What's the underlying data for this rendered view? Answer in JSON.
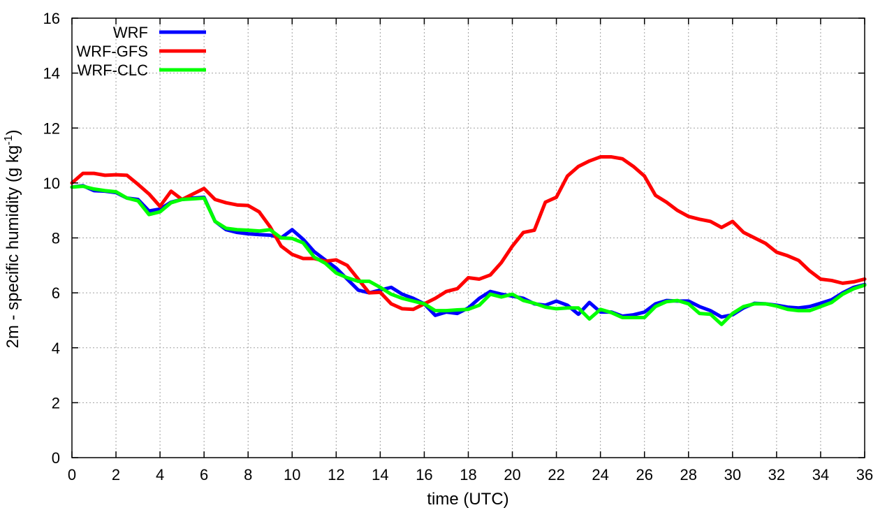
{
  "chart_data": {
    "type": "line",
    "title": "",
    "xlabel": "time (UTC)",
    "ylabel_main": "2m - specific humidity (g kg",
    "ylabel_sup": "-1",
    "ylabel_close": ")",
    "xlim": [
      0,
      36
    ],
    "ylim": [
      0,
      16
    ],
    "xticks": [
      0,
      2,
      4,
      6,
      8,
      10,
      12,
      14,
      16,
      18,
      20,
      22,
      24,
      26,
      28,
      30,
      32,
      34,
      36
    ],
    "yticks": [
      0,
      2,
      4,
      6,
      8,
      10,
      12,
      14,
      16
    ],
    "grid": true,
    "legend_position": "top-left",
    "x": [
      0,
      0.5,
      1,
      1.5,
      2,
      2.5,
      3,
      3.5,
      4,
      4.5,
      5,
      5.5,
      6,
      6.5,
      7,
      7.5,
      8,
      8.5,
      9,
      9.5,
      10,
      10.5,
      11,
      11.5,
      12,
      12.5,
      13,
      13.5,
      14,
      14.5,
      15,
      15.5,
      16,
      16.5,
      17,
      17.5,
      18,
      18.5,
      19,
      19.5,
      20,
      20.5,
      21,
      21.5,
      22,
      22.5,
      23,
      23.5,
      24,
      24.5,
      25,
      25.5,
      26,
      26.5,
      27,
      27.5,
      28,
      28.5,
      29,
      29.5,
      30,
      30.5,
      31,
      31.5,
      32,
      32.5,
      33,
      33.5,
      34,
      34.5,
      35,
      35.5,
      36
    ],
    "series": [
      {
        "name": "WRF",
        "color": "#0000ff",
        "values": [
          9.85,
          9.9,
          9.72,
          9.7,
          9.65,
          9.45,
          9.4,
          8.98,
          9.05,
          9.3,
          9.4,
          9.45,
          9.48,
          8.6,
          8.3,
          8.2,
          8.15,
          8.12,
          8.1,
          8.0,
          8.3,
          7.95,
          7.5,
          7.2,
          6.9,
          6.5,
          6.1,
          6.0,
          6.1,
          6.2,
          5.95,
          5.8,
          5.6,
          5.18,
          5.3,
          5.25,
          5.45,
          5.8,
          6.05,
          5.95,
          5.88,
          5.8,
          5.6,
          5.55,
          5.7,
          5.55,
          5.22,
          5.65,
          5.3,
          5.3,
          5.15,
          5.2,
          5.3,
          5.6,
          5.72,
          5.7,
          5.7,
          5.5,
          5.35,
          5.12,
          5.2,
          5.45,
          5.62,
          5.6,
          5.55,
          5.48,
          5.45,
          5.5,
          5.62,
          5.75,
          6.0,
          6.2,
          6.3
        ]
      },
      {
        "name": "WRF-GFS",
        "color": "#ff0000",
        "values": [
          10.0,
          10.35,
          10.35,
          10.28,
          10.3,
          10.28,
          9.95,
          9.6,
          9.15,
          9.7,
          9.4,
          9.6,
          9.8,
          9.4,
          9.28,
          9.2,
          9.18,
          8.95,
          8.4,
          7.7,
          7.4,
          7.25,
          7.25,
          7.15,
          7.2,
          7.0,
          6.5,
          6.0,
          6.02,
          5.6,
          5.42,
          5.4,
          5.6,
          5.8,
          6.05,
          6.15,
          6.55,
          6.5,
          6.65,
          7.1,
          7.7,
          8.2,
          8.28,
          9.3,
          9.48,
          10.25,
          10.6,
          10.8,
          10.95,
          10.95,
          10.88,
          10.6,
          10.25,
          9.55,
          9.3,
          9.0,
          8.78,
          8.68,
          8.6,
          8.38,
          8.6,
          8.2,
          8.0,
          7.8,
          7.48,
          7.35,
          7.18,
          6.8,
          6.5,
          6.45,
          6.35,
          6.4,
          6.5
        ]
      },
      {
        "name": "WRF-CLC",
        "color": "#00ff00",
        "values": [
          9.85,
          9.88,
          9.78,
          9.72,
          9.68,
          9.45,
          9.35,
          8.85,
          8.95,
          9.28,
          9.4,
          9.42,
          9.45,
          8.6,
          8.35,
          8.3,
          8.28,
          8.25,
          8.3,
          8.0,
          7.98,
          7.82,
          7.3,
          7.08,
          6.72,
          6.55,
          6.42,
          6.42,
          6.2,
          5.95,
          5.8,
          5.7,
          5.6,
          5.35,
          5.35,
          5.38,
          5.4,
          5.55,
          5.95,
          5.85,
          5.95,
          5.72,
          5.62,
          5.48,
          5.42,
          5.45,
          5.45,
          5.05,
          5.4,
          5.28,
          5.1,
          5.1,
          5.1,
          5.5,
          5.68,
          5.72,
          5.6,
          5.25,
          5.22,
          4.85,
          5.25,
          5.5,
          5.6,
          5.6,
          5.52,
          5.4,
          5.35,
          5.35,
          5.5,
          5.65,
          5.95,
          6.15,
          6.28
        ]
      }
    ]
  }
}
